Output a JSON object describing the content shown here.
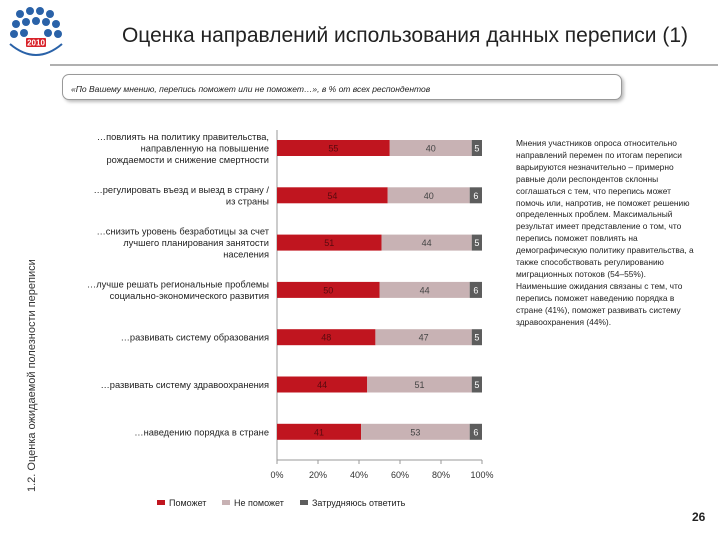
{
  "title": "Оценка направлений использования данных переписи (1)",
  "section_label": "1.2. Оценка ожидаемой полезности переписи",
  "question": "«По Вашему мнению, перепись поможет или не поможет…», в % от всех респондентов",
  "logo_text": "2010",
  "commentary": "Мнения участников опроса относительно направлений перемен по итогам переписи варьируются незначительно – примерно равные доли респондентов склонны соглашаться с тем, что перепись может помочь или, напротив, не поможет решению определенных проблем. Максимальный результат имеет представление о том, что перепись поможет повлиять на демографическую политику правительства, а также способствовать регулированию миграционных потоков (54–55%). Наименьшие ожидания связаны с тем, что перепись поможет наведению порядка в стране (41%), поможет развивать систему здравоохранения (44%).",
  "page_number": "26",
  "colors": {
    "help": "#c0151f",
    "no_help": "#c8b2b4",
    "hard": "#5d5d5d"
  },
  "chart_data": {
    "type": "bar",
    "orientation": "horizontal",
    "stacked": true,
    "categories": [
      "…повлиять на политику правительства, направленную на повышение рождаемости и снижение смертности",
      "…регулировать въезд и выезд в страну / из страны",
      "…снизить уровень безработицы за счет лучшего планирования занятости населения",
      "…лучше решать региональные проблемы социально-экономического развития",
      "…развивать систему образования",
      "…развивать систему здравоохранения",
      "…наведению порядка в стране"
    ],
    "category_lines": [
      [
        "…повлиять на политику правительства,",
        "направленную на повышение",
        "рождаемости и снижение смертности"
      ],
      [
        "…регулировать въезд и выезд в страну /",
        "из страны"
      ],
      [
        "…снизить уровень безработицы за счет",
        "лучшего планирования занятости",
        "населения"
      ],
      [
        "…лучше решать региональные проблемы",
        "социально-экономического развития"
      ],
      [
        "…развивать систему образования"
      ],
      [
        "…развивать систему здравоохранения"
      ],
      [
        "…наведению порядка в стране"
      ]
    ],
    "series": [
      {
        "name": "Поможет",
        "values": [
          55,
          54,
          51,
          50,
          48,
          44,
          41
        ]
      },
      {
        "name": "Не поможет",
        "values": [
          40,
          40,
          44,
          44,
          47,
          51,
          53
        ]
      },
      {
        "name": "Затрудняюсь ответить",
        "values": [
          5,
          6,
          5,
          6,
          5,
          5,
          6
        ]
      }
    ],
    "xlim": [
      0,
      100
    ],
    "xticks": [
      "0%",
      "20%",
      "40%",
      "60%",
      "80%",
      "100%"
    ],
    "grid": false,
    "legend": "bottom"
  }
}
